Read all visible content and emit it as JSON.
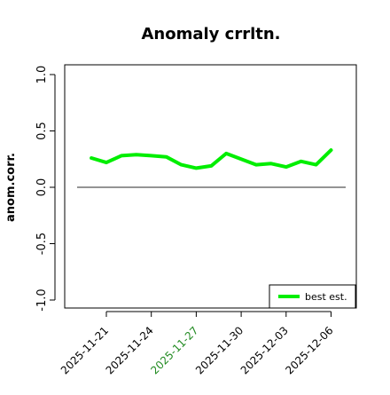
{
  "chart_data": {
    "type": "line",
    "title": "Anomaly crrltn.",
    "ylabel": "anom.corr.",
    "xlabel": "",
    "ylim": [
      -1.0,
      1.0
    ],
    "yticks": [
      "-1.0",
      "-0.5",
      "0.0",
      "0.5",
      "1.0"
    ],
    "xticks": [
      "2025-11-21",
      "2025-11-24",
      "2025-11-27",
      "2025-11-30",
      "2025-12-03",
      "2025-12-06"
    ],
    "highlight_tick": "2025-11-27",
    "highlight_color": "#228b22",
    "reference_line": 0.0,
    "grid": false,
    "legend_position": "bottom-right",
    "series": [
      {
        "name": "best est.",
        "color": "#00ee00",
        "x": [
          "2025-11-20",
          "2025-11-21",
          "2025-11-22",
          "2025-11-23",
          "2025-11-24",
          "2025-11-25",
          "2025-11-26",
          "2025-11-27",
          "2025-11-28",
          "2025-11-29",
          "2025-11-30",
          "2025-12-01",
          "2025-12-02",
          "2025-12-03",
          "2025-12-04",
          "2025-12-05",
          "2025-12-06"
        ],
        "values": [
          0.26,
          0.22,
          0.28,
          0.29,
          0.28,
          0.27,
          0.2,
          0.17,
          0.19,
          0.3,
          0.25,
          0.2,
          0.21,
          0.18,
          0.23,
          0.2,
          0.33
        ]
      }
    ]
  }
}
